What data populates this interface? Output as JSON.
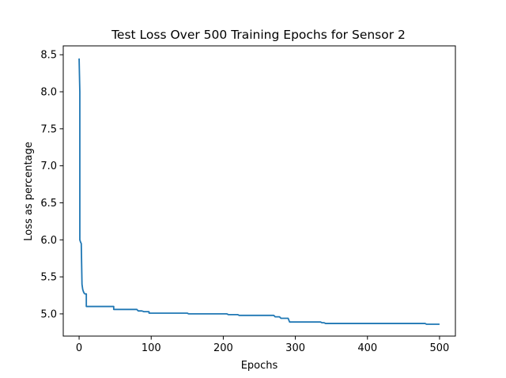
{
  "chart_data": {
    "type": "line",
    "title": "Test Loss Over 500 Training Epochs for Sensor 2",
    "xlabel": "Epochs",
    "ylabel": "Loss as percentage",
    "xlim": [
      -22,
      522
    ],
    "ylim": [
      4.7,
      8.62
    ],
    "x_ticks": [
      0,
      100,
      200,
      300,
      400,
      500
    ],
    "y_ticks": [
      5.0,
      5.5,
      6.0,
      6.5,
      7.0,
      7.5,
      8.0,
      8.5
    ],
    "x_tick_labels": [
      "0",
      "100",
      "200",
      "300",
      "400",
      "500"
    ],
    "y_tick_labels": [
      "5.0",
      "5.5",
      "6.0",
      "6.5",
      "7.0",
      "7.5",
      "8.0",
      "8.5"
    ],
    "grid": false,
    "series": [
      {
        "color": "#1f77b4",
        "x": [
          0,
          1,
          1,
          2,
          3,
          4,
          5,
          6,
          7,
          8,
          9,
          10,
          10,
          48,
          48,
          80,
          82,
          87,
          90,
          90,
          97,
          97,
          150,
          152,
          205,
          207,
          220,
          222,
          270,
          272,
          278,
          280,
          290,
          292,
          335,
          337,
          340,
          342,
          380,
          480,
          482,
          500
        ],
        "y": [
          8.45,
          8.0,
          6.0,
          5.97,
          5.95,
          5.4,
          5.33,
          5.3,
          5.28,
          5.27,
          5.27,
          5.27,
          5.1,
          5.1,
          5.06,
          5.06,
          5.04,
          5.04,
          5.03,
          5.03,
          5.03,
          5.01,
          5.01,
          5.0,
          5.0,
          4.99,
          4.99,
          4.98,
          4.98,
          4.96,
          4.96,
          4.94,
          4.94,
          4.89,
          4.89,
          4.88,
          4.88,
          4.87,
          4.87,
          4.87,
          4.86,
          4.86
        ]
      }
    ]
  }
}
